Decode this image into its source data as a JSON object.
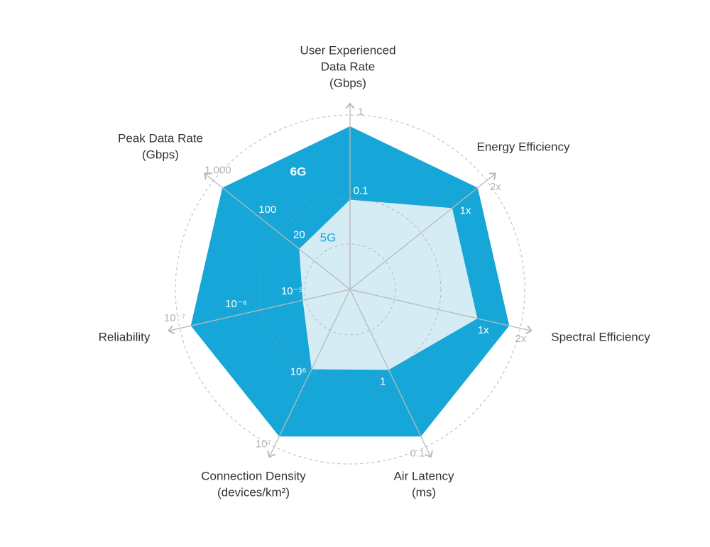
{
  "chart_data": {
    "type": "radar",
    "axes": [
      {
        "name": [
          "User Experienced",
          "Data Rate",
          "(Gbps)"
        ],
        "scale": "log",
        "lim": [
          0.006,
          1
        ],
        "ticks": [
          0.1,
          1
        ]
      },
      {
        "name": [
          "Energy Efficiency"
        ],
        "scale": "linear",
        "lim": [
          -3,
          2
        ],
        "ticks": [
          {
            "value": 1,
            "label": "1x"
          },
          {
            "value": 2,
            "label": "2x"
          }
        ]
      },
      {
        "name": [
          "Spectral Efficiency"
        ],
        "scale": "linear",
        "lim": [
          -3,
          2
        ],
        "ticks": [
          {
            "value": 1,
            "label": "1x"
          },
          {
            "value": 2,
            "label": "2x"
          }
        ]
      },
      {
        "name": [
          "Air Latency",
          "(ms)"
        ],
        "scale": "log",
        "lim": [
          16,
          0.1
        ],
        "ticks": [
          1,
          0.1
        ]
      },
      {
        "name": [
          "Connection Density",
          "(devices/km²)"
        ],
        "scale": "log",
        "lim": [
          65000,
          10000000
        ],
        "ticks": [
          {
            "value": 1000000,
            "label": "10⁶"
          },
          {
            "value": 10000000,
            "label": "10⁷"
          }
        ]
      },
      {
        "name": [
          "Reliability"
        ],
        "scale": "log",
        "lim": [
          7e-05,
          1e-07
        ],
        "ticks": [
          {
            "value": 1e-05,
            "label": "10⁻⁵"
          },
          {
            "value": 1e-06,
            "label": "10⁻⁶"
          },
          {
            "value": 1e-07,
            "label": "10⁻⁷"
          }
        ]
      },
      {
        "name": [
          "Peak Data Rate",
          "(Gbps)"
        ],
        "scale": "log",
        "lim": [
          1.5,
          1000
        ],
        "ticks": [
          20,
          100,
          {
            "value": 1000,
            "label": "1,000"
          }
        ]
      }
    ],
    "series": [
      {
        "name": "6G",
        "color": "#16a6d8",
        "values": [
          1,
          2,
          2,
          0.1,
          10000000,
          1e-07,
          1000
        ]
      },
      {
        "name": "5G",
        "color": "#d6ecf5",
        "values": [
          0.1,
          1,
          1,
          1,
          1000000,
          1e-05,
          20
        ]
      }
    ]
  }
}
